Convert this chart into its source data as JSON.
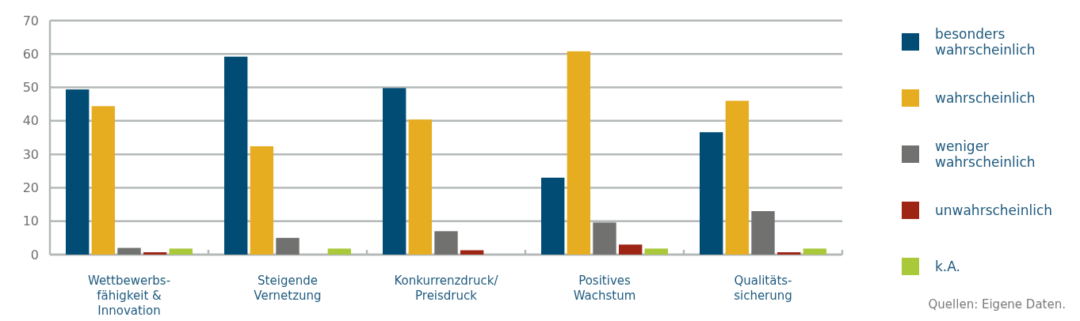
{
  "chart_data": {
    "type": "bar",
    "categories": [
      "Wettbewerbs-\nfähigkeit &\nInnovation",
      "Steigende\nVernetzung",
      "Konkurrenzdruck/\nPreisdruck",
      "Positives\nWachstum",
      "Qualitäts-\nsicherung"
    ],
    "series": [
      {
        "name": "besonders\nwahrscheinlich",
        "color": "#004c74",
        "values": [
          49.4,
          59.2,
          49.8,
          23,
          36.6
        ]
      },
      {
        "name": "wahrscheinlich",
        "color": "#e6ad20",
        "values": [
          44.4,
          32.4,
          40.4,
          60.8,
          46
        ]
      },
      {
        "name": "weniger\nwahrscheinlich",
        "color": "#717170",
        "values": [
          2,
          5,
          7,
          9.6,
          13
        ]
      },
      {
        "name": "unwahrscheinlich",
        "color": "#9e2414",
        "values": [
          0.7,
          0,
          1.3,
          3,
          0.7
        ]
      },
      {
        "name": "k.A.",
        "color": "#a9c83a",
        "values": [
          1.8,
          1.8,
          0,
          1.8,
          1.8
        ]
      }
    ],
    "ylim": [
      0,
      70
    ],
    "yticks": [
      0,
      10,
      20,
      30,
      40,
      50,
      60,
      70
    ],
    "grid": "y",
    "legend": "right",
    "annotations": [
      "Quellen: Eigene Daten."
    ]
  }
}
